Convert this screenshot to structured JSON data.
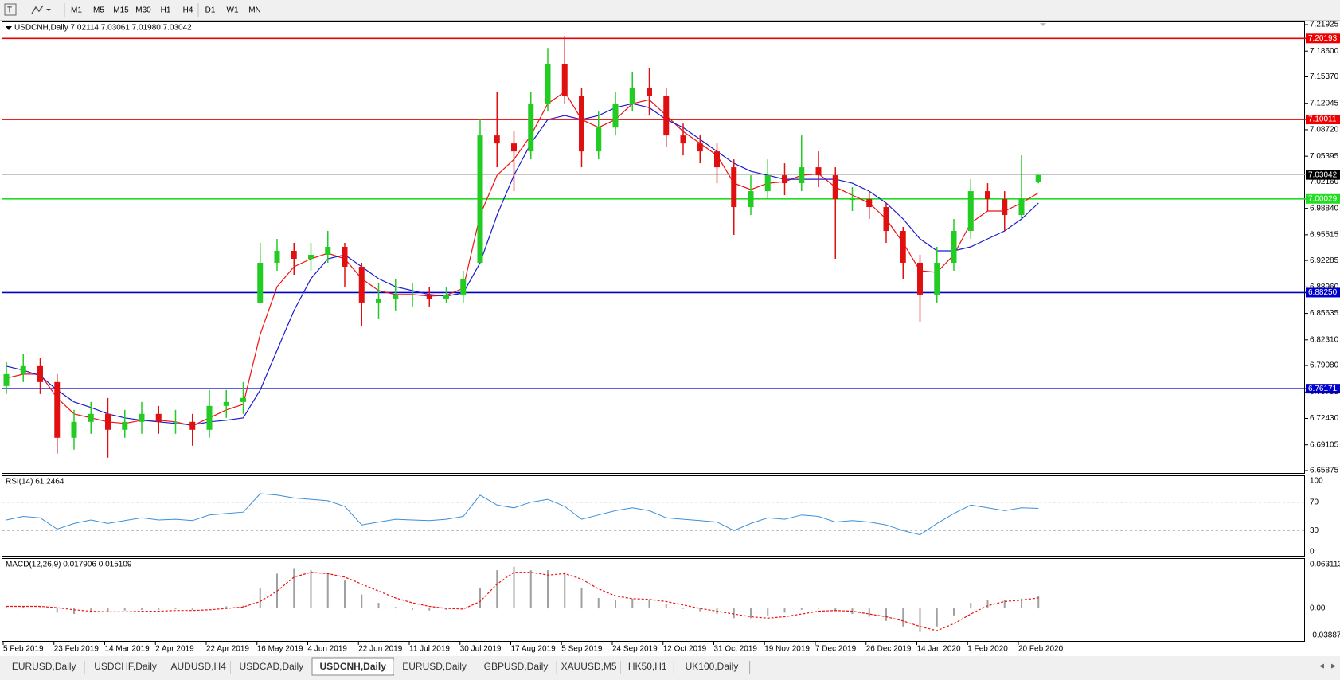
{
  "ui": {
    "timeframes": [
      "M1",
      "M5",
      "M15",
      "M30",
      "H1",
      "H4",
      "D1",
      "W1",
      "MN"
    ],
    "tabs": [
      "EURUSD,Daily",
      "USDCHF,Daily",
      "AUDUSD,H4",
      "USDCAD,Daily",
      "USDCNH,Daily",
      "EURUSD,Daily",
      "GBPUSD,Daily",
      "XAUUSD,M5",
      "HK50,H1",
      "UK100,Daily"
    ],
    "active_tab": 4
  },
  "chart_data": [
    {
      "type": "candlestick",
      "title": "USDCNH,Daily  7.02114 7.03061 7.01980 7.03042",
      "up_color": "#22cc22",
      "down_color": "#e01010",
      "categories": [
        "5 Feb 2019",
        null,
        null,
        "23 Feb 2019",
        null,
        null,
        "14 Mar 2019",
        null,
        null,
        "2 Apr 2019",
        null,
        null,
        "22 Apr 2019",
        null,
        null,
        "16 May 2019",
        null,
        null,
        "4 Jun 2019",
        null,
        null,
        "22 Jun 2019",
        null,
        null,
        "11 Jul 2019",
        null,
        null,
        "30 Jul 2019",
        null,
        null,
        "17 Aug 2019",
        null,
        null,
        "5 Sep 2019",
        null,
        null,
        "24 Sep 2019",
        null,
        null,
        "12 Oct 2019",
        null,
        null,
        "31 Oct 2019",
        null,
        null,
        "19 Nov 2019",
        null,
        null,
        "7 Dec 2019",
        null,
        null,
        "26 Dec 2019",
        null,
        null,
        "14 Jan 2020",
        null,
        null,
        "1 Feb 2020",
        null,
        null,
        "20 Feb 2020",
        null
      ],
      "open": [
        6.765,
        6.78,
        6.79,
        6.77,
        6.7,
        6.72,
        6.73,
        6.71,
        6.72,
        6.73,
        6.72,
        6.72,
        6.71,
        6.74,
        6.745,
        6.87,
        6.92,
        6.935,
        6.925,
        6.93,
        6.94,
        6.915,
        6.87,
        6.875,
        6.88,
        6.88,
        6.875,
        6.88,
        6.92,
        7.08,
        7.07,
        7.06,
        7.12,
        7.17,
        7.13,
        7.06,
        7.09,
        7.12,
        7.14,
        7.13,
        7.08,
        7.07,
        7.06,
        7.04,
        6.99,
        7.01,
        7.03,
        7.02,
        7.04,
        7.03,
        7.0,
        7.0,
        6.99,
        6.96,
        6.92,
        6.88,
        6.92,
        6.96,
        7.01,
        7.0,
        6.98,
        7.02114
      ],
      "high": [
        6.795,
        6.805,
        6.8,
        6.78,
        6.735,
        6.745,
        6.75,
        6.735,
        6.745,
        6.74,
        6.735,
        6.73,
        6.76,
        6.76,
        6.77,
        6.945,
        6.95,
        6.945,
        6.945,
        6.96,
        6.945,
        6.92,
        6.895,
        6.9,
        6.895,
        6.89,
        6.89,
        6.91,
        7.1,
        7.135,
        7.085,
        7.135,
        7.19,
        7.205,
        7.14,
        7.11,
        7.135,
        7.16,
        7.165,
        7.14,
        7.095,
        7.08,
        7.07,
        7.05,
        7.03,
        7.05,
        7.045,
        7.08,
        7.06,
        7.04,
        7.015,
        7.01,
        6.995,
        6.965,
        6.93,
        6.94,
        6.975,
        7.025,
        7.02,
        7.01,
        7.055,
        7.03061
      ],
      "low": [
        6.755,
        6.77,
        6.755,
        6.68,
        6.685,
        6.705,
        6.675,
        6.7,
        6.705,
        6.705,
        6.705,
        6.69,
        6.7,
        6.725,
        6.73,
        6.87,
        6.91,
        6.905,
        6.91,
        6.92,
        6.89,
        6.84,
        6.85,
        6.86,
        6.865,
        6.865,
        6.87,
        6.87,
        6.92,
        7.04,
        7.01,
        7.05,
        7.11,
        7.12,
        7.04,
        7.05,
        7.08,
        7.11,
        7.105,
        7.065,
        7.055,
        7.045,
        7.02,
        6.955,
        6.98,
        7.0,
        7.005,
        7.01,
        7.015,
        6.925,
        6.985,
        6.975,
        6.945,
        6.9,
        6.845,
        6.87,
        6.91,
        6.95,
        6.985,
        6.96,
        6.975,
        7.0198
      ],
      "close": [
        6.78,
        6.79,
        6.77,
        6.7,
        6.72,
        6.73,
        6.71,
        6.72,
        6.73,
        6.72,
        6.72,
        6.71,
        6.74,
        6.745,
        6.75,
        6.92,
        6.935,
        6.925,
        6.93,
        6.94,
        6.915,
        6.87,
        6.875,
        6.88,
        6.88,
        6.875,
        6.88,
        6.9,
        7.08,
        7.07,
        7.06,
        7.12,
        7.17,
        7.13,
        7.06,
        7.09,
        7.12,
        7.14,
        7.13,
        7.08,
        7.07,
        7.06,
        7.04,
        6.99,
        7.01,
        7.03,
        7.02,
        7.04,
        7.03,
        7.0,
        7.0,
        6.99,
        6.96,
        6.92,
        6.88,
        6.92,
        6.96,
        7.01,
        7.0,
        6.98,
        7.0,
        7.03042
      ],
      "series": [
        {
          "color": "#ee1111",
          "values": [
            6.775,
            6.78,
            6.78,
            6.75,
            6.73,
            6.725,
            6.72,
            6.718,
            6.722,
            6.722,
            6.72,
            6.715,
            6.725,
            6.735,
            6.742,
            6.83,
            6.89,
            6.915,
            6.925,
            6.932,
            6.925,
            6.9,
            6.885,
            6.88,
            6.88,
            6.878,
            6.879,
            6.888,
            6.98,
            7.03,
            7.05,
            7.08,
            7.12,
            7.135,
            7.1,
            7.09,
            7.1,
            7.12,
            7.125,
            7.105,
            7.085,
            7.07,
            7.055,
            7.02,
            7.012,
            7.02,
            7.022,
            7.03,
            7.032,
            7.015,
            7.005,
            6.995,
            6.975,
            6.945,
            6.91,
            6.908,
            6.93,
            6.97,
            6.985,
            6.985,
            6.995,
            7.008
          ]
        },
        {
          "color": "#1a1ad0",
          "values": [
            6.79,
            6.785,
            6.778,
            6.76,
            6.745,
            6.738,
            6.73,
            6.725,
            6.722,
            6.72,
            6.718,
            6.716,
            6.72,
            6.722,
            6.725,
            6.76,
            6.81,
            6.86,
            6.9,
            6.925,
            6.93,
            6.915,
            6.9,
            6.89,
            6.885,
            6.88,
            6.878,
            6.882,
            6.92,
            6.98,
            7.03,
            7.07,
            7.1,
            7.105,
            7.1,
            7.105,
            7.115,
            7.12,
            7.115,
            7.1,
            7.09,
            7.075,
            7.06,
            7.045,
            7.035,
            7.03,
            7.025,
            7.025,
            7.025,
            7.025,
            7.02,
            7.01,
            6.995,
            6.975,
            6.95,
            6.935,
            6.935,
            6.94,
            6.95,
            6.96,
            6.975,
            6.995
          ]
        }
      ],
      "ylim": [
        6.65875,
        7.21925
      ],
      "yticks": [
        7.21925,
        {
          "value": 7.186,
          "label": "7.18600"
        },
        {
          "value": 7.1537,
          "label": "7.15370"
        },
        7.12045,
        {
          "value": 7.0872,
          "label": "7.08720"
        },
        7.05395,
        {
          "value": 7.0216,
          "label": "7.02160"
        },
        {
          "value": 6.9884,
          "label": "6.98840"
        },
        6.95515,
        6.92285,
        {
          "value": 6.8896,
          "label": "6.88960"
        },
        6.85635,
        {
          "value": 6.8231,
          "label": "6.82310"
        },
        {
          "value": 6.7908,
          "label": "6.79080"
        },
        6.75755,
        {
          "value": 6.7243,
          "label": "6.72430"
        },
        6.69105,
        6.65875
      ],
      "levels": [
        {
          "value": 7.20193,
          "color": "#ee0000"
        },
        {
          "value": 7.10011,
          "color": "#ee0000"
        },
        {
          "value": 7.00029,
          "color": "#22dd22"
        },
        {
          "value": 6.8825,
          "label": "6.88250",
          "color": "#0000cc"
        },
        {
          "value": 6.76171,
          "color": "#0000cc"
        }
      ],
      "last": {
        "value": 7.03042,
        "color": "#b0b0b0"
      }
    },
    {
      "type": "line",
      "title": "RSI(14) 61.2464",
      "color": "#3a8fd8",
      "values": [
        45,
        50,
        48,
        32,
        40,
        45,
        40,
        44,
        48,
        45,
        46,
        44,
        52,
        54,
        56,
        82,
        80,
        76,
        74,
        72,
        64,
        38,
        42,
        46,
        45,
        44,
        46,
        50,
        80,
        66,
        62,
        70,
        74,
        64,
        46,
        52,
        58,
        62,
        58,
        48,
        46,
        44,
        42,
        30,
        40,
        48,
        46,
        52,
        50,
        42,
        44,
        42,
        38,
        30,
        24,
        40,
        54,
        66,
        62,
        58,
        62,
        61.2464
      ],
      "ylim": [
        0,
        100
      ],
      "yticks": [
        100,
        70,
        30,
        0
      ]
    },
    {
      "type": "macd",
      "title": "MACD(12,26,9) 0.017906 0.015109",
      "color": "#a0a0a0",
      "signal_color": "#ee1111",
      "values": [
        0.002,
        0.003,
        0.002,
        -0.006,
        -0.008,
        -0.006,
        -0.005,
        -0.003,
        -0.002,
        -0.002,
        -0.001,
        -0.002,
        0.001,
        0.003,
        0.004,
        0.03,
        0.05,
        0.058,
        0.055,
        0.05,
        0.04,
        0.02,
        0.008,
        0.002,
        -0.002,
        -0.003,
        -0.002,
        0.0,
        0.03,
        0.055,
        0.06,
        0.055,
        0.055,
        0.052,
        0.03,
        0.015,
        0.012,
        0.014,
        0.012,
        0.006,
        0.0,
        -0.004,
        -0.008,
        -0.014,
        -0.014,
        -0.01,
        -0.006,
        -0.002,
        0.0,
        -0.004,
        -0.008,
        -0.012,
        -0.018,
        -0.026,
        -0.034,
        -0.026,
        -0.01,
        0.008,
        0.012,
        0.012,
        0.014,
        0.017906
      ],
      "signal": [
        0.003,
        0.003,
        0.003,
        0.001,
        -0.002,
        -0.004,
        -0.005,
        -0.005,
        -0.004,
        -0.004,
        -0.003,
        -0.003,
        -0.002,
        0.0,
        0.002,
        0.01,
        0.025,
        0.045,
        0.052,
        0.05,
        0.045,
        0.035,
        0.025,
        0.015,
        0.008,
        0.003,
        0.0,
        -0.001,
        0.01,
        0.035,
        0.052,
        0.052,
        0.048,
        0.05,
        0.042,
        0.028,
        0.018,
        0.014,
        0.013,
        0.01,
        0.005,
        0.0,
        -0.004,
        -0.008,
        -0.012,
        -0.014,
        -0.012,
        -0.008,
        -0.004,
        -0.003,
        -0.004,
        -0.008,
        -0.012,
        -0.018,
        -0.026,
        -0.032,
        -0.022,
        -0.008,
        0.004,
        0.01,
        0.012,
        0.015109
      ],
      "ylim": [
        -0.038872,
        0.063113
      ],
      "yticks": [
        0.063113,
        {
          "value": 0,
          "label": "0.00"
        },
        -0.038872
      ]
    }
  ]
}
